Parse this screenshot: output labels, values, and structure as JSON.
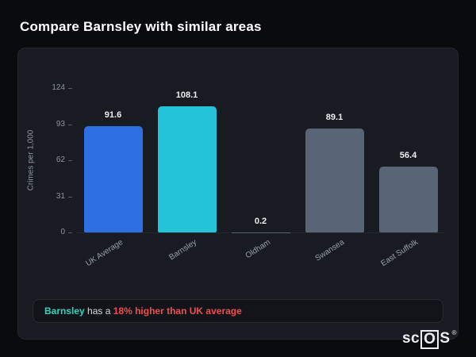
{
  "page": {
    "title": "Compare Barnsley with similar areas"
  },
  "chart_data": {
    "type": "bar",
    "categories": [
      "UK Average",
      "Barnsley",
      "Oldham",
      "Swansea",
      "East Suffolk"
    ],
    "values": [
      91.6,
      108.1,
      0.2,
      89.1,
      56.4
    ],
    "value_labels": [
      "91.6",
      "108.1",
      "0.2",
      "89.1",
      "56.4"
    ],
    "bar_colors": [
      "#2f6fe4",
      "#25c3d8",
      "#5a6477",
      "#5a6477",
      "#5a6477"
    ],
    "title": "",
    "xlabel": "",
    "ylabel": "Crimes per 1,000",
    "yticks": [
      124,
      93,
      62,
      31,
      0
    ],
    "ylim": [
      0,
      124
    ],
    "grid": false,
    "legend": "none"
  },
  "annotation": {
    "subject": "Barnsley",
    "middle": " has a ",
    "highlight": "18% higher than UK average",
    "subject_color": "#2bd4bd",
    "highlight_color": "#ef4e4e"
  },
  "logo": {
    "pre": "sc",
    "boxed": "O",
    "post": "S",
    "reg": "®"
  }
}
